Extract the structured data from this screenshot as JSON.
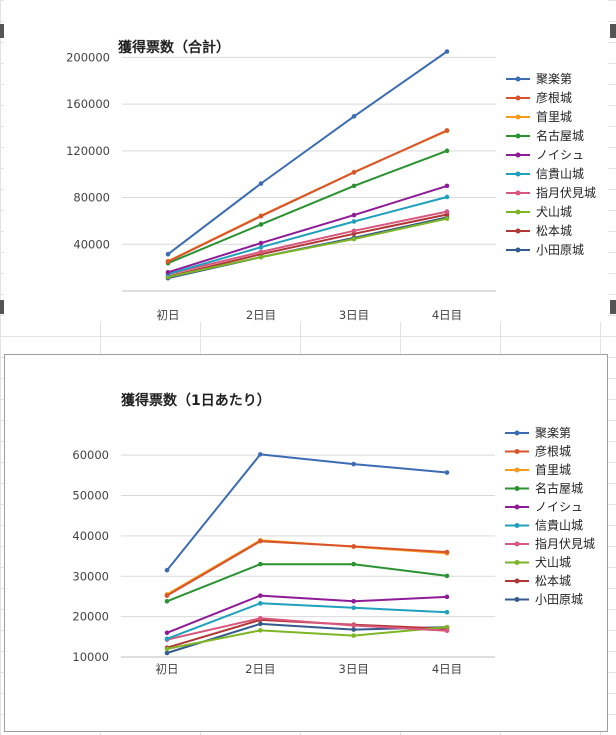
{
  "colors": {
    "聚楽第": "#3c6cb4",
    "彦根城": "#d9542c",
    "首里城": "#f59a1c",
    "名古屋城": "#2a9230",
    "ノイシュ": "#8e1b98",
    "信貴山城": "#1fa0bd",
    "指月伏見城": "#d9577e",
    "犬山城": "#7db526",
    "松本城": "#b33636",
    "小田原城": "#355a8e"
  },
  "chart_data": [
    {
      "type": "line",
      "title": "獲得票数（合計）",
      "categories": [
        "初日",
        "2日目",
        "3日目",
        "4日目"
      ],
      "ylim": [
        0,
        220000
      ],
      "yticks": [
        40000,
        80000,
        120000,
        160000,
        200000
      ],
      "grid": true,
      "legend": "right",
      "series": [
        {
          "name": "聚楽第",
          "values": [
            31500,
            92000,
            149500,
            205000
          ]
        },
        {
          "name": "彦根城",
          "values": [
            25200,
            64000,
            101500,
            137500
          ]
        },
        {
          "name": "首里城",
          "values": [
            25500,
            64500,
            101800,
            137000
          ]
        },
        {
          "name": "名古屋城",
          "values": [
            23800,
            57000,
            90000,
            120000
          ]
        },
        {
          "name": "ノイシュ",
          "values": [
            16000,
            41000,
            65000,
            90000
          ]
        },
        {
          "name": "信貴山城",
          "values": [
            14500,
            37500,
            59500,
            80500
          ]
        },
        {
          "name": "指月伏見城",
          "values": [
            14300,
            33500,
            51500,
            68000
          ]
        },
        {
          "name": "犬山城",
          "values": [
            12000,
            29000,
            44500,
            62000
          ]
        },
        {
          "name": "松本城",
          "values": [
            12300,
            31500,
            49000,
            65500
          ]
        },
        {
          "name": "小田原城",
          "values": [
            11000,
            29000,
            45500,
            63000
          ]
        }
      ]
    },
    {
      "type": "line",
      "title": "獲得票数（1日あたり）",
      "categories": [
        "初日",
        "2日目",
        "3日目",
        "4日目"
      ],
      "ylim": [
        10000,
        65000
      ],
      "yticks": [
        10000,
        20000,
        30000,
        40000,
        50000,
        60000
      ],
      "grid": true,
      "legend": "right",
      "series": [
        {
          "name": "聚楽第",
          "values": [
            31500,
            60200,
            57800,
            55700
          ]
        },
        {
          "name": "彦根城",
          "values": [
            25200,
            38700,
            37400,
            36000
          ]
        },
        {
          "name": "首里城",
          "values": [
            25500,
            38900,
            37300,
            35700
          ]
        },
        {
          "name": "名古屋城",
          "values": [
            23800,
            33000,
            33000,
            30100
          ]
        },
        {
          "name": "ノイシュ",
          "values": [
            16000,
            25200,
            23800,
            24900
          ]
        },
        {
          "name": "信貴山城",
          "values": [
            14500,
            23300,
            22200,
            21100
          ]
        },
        {
          "name": "指月伏見城",
          "values": [
            14300,
            19600,
            17800,
            16500
          ]
        },
        {
          "name": "犬山城",
          "values": [
            12000,
            16600,
            15300,
            17400
          ]
        },
        {
          "name": "松本城",
          "values": [
            12300,
            19200,
            18000,
            17000
          ]
        },
        {
          "name": "小田原城",
          "values": [
            11000,
            18200,
            16800,
            17400
          ]
        }
      ]
    }
  ]
}
